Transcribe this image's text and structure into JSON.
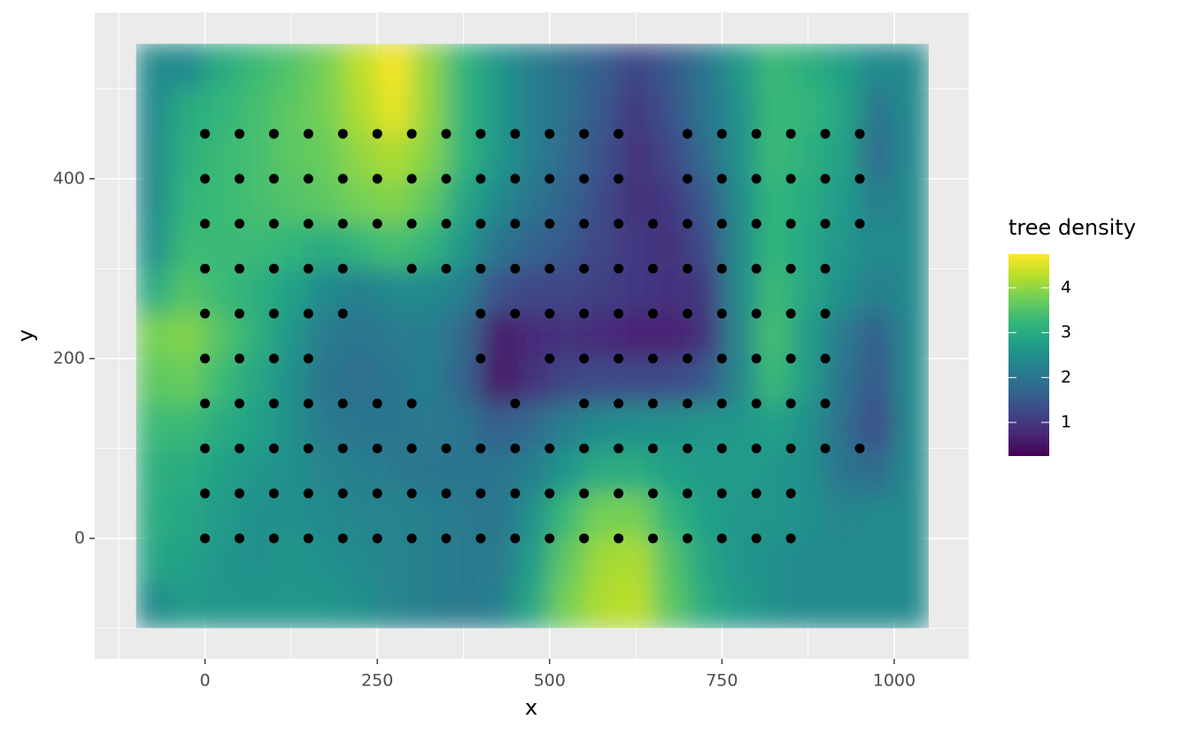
{
  "chart_data": {
    "type": "heatmap",
    "x_label": "x",
    "y_label": "y",
    "legend_title": "tree density",
    "xlim": [
      -160,
      1108
    ],
    "ylim": [
      -134,
      585
    ],
    "xticks": [
      0,
      250,
      500,
      750,
      1000
    ],
    "yticks": [
      0,
      200,
      400
    ],
    "xminor": [
      -125,
      125,
      375,
      625,
      875
    ],
    "yminor": [
      -100,
      100,
      300,
      500
    ],
    "grid": true,
    "zlim": [
      0.25,
      4.75
    ],
    "zticks": [
      1,
      2,
      3,
      4
    ],
    "colorscale": [
      "#440154",
      "#482878",
      "#3e4989",
      "#31688e",
      "#26828e",
      "#1f9e89",
      "#35b779",
      "#6ece58",
      "#b5de2b",
      "#fde725"
    ],
    "x": [
      -75,
      -25,
      25,
      75,
      125,
      175,
      225,
      275,
      325,
      375,
      425,
      475,
      525,
      575,
      625,
      675,
      725,
      775,
      825,
      875,
      925,
      975,
      1025
    ],
    "y": [
      525,
      475,
      425,
      375,
      325,
      275,
      225,
      175,
      125,
      75,
      25,
      -25,
      -75
    ],
    "z": [
      [
        2.4,
        2.4,
        3.0,
        3.3,
        3.5,
        3.8,
        4.3,
        4.7,
        4.0,
        3.2,
        2.6,
        2.2,
        1.9,
        1.6,
        1.2,
        1.5,
        2.0,
        2.6,
        3.3,
        3.1,
        2.8,
        2.4,
        2.4
      ],
      [
        2.4,
        3.0,
        3.2,
        3.4,
        3.6,
        3.8,
        4.2,
        4.6,
        4.0,
        3.2,
        2.6,
        2.2,
        1.9,
        1.5,
        1.0,
        1.4,
        2.0,
        2.5,
        3.3,
        3.2,
        2.9,
        2.0,
        2.4
      ],
      [
        2.4,
        3.1,
        3.3,
        3.4,
        3.6,
        3.7,
        4.0,
        4.2,
        3.9,
        3.2,
        2.6,
        2.2,
        1.8,
        1.4,
        0.9,
        1.2,
        1.8,
        2.5,
        3.3,
        3.1,
        2.8,
        1.8,
        2.4
      ],
      [
        2.4,
        3.2,
        3.3,
        3.4,
        3.5,
        3.6,
        3.8,
        3.9,
        3.6,
        2.9,
        2.4,
        2.0,
        1.7,
        1.3,
        0.9,
        1.0,
        1.5,
        2.4,
        3.2,
        3.0,
        2.7,
        2.2,
        2.4
      ],
      [
        2.5,
        3.3,
        3.3,
        3.3,
        3.2,
        3.0,
        3.2,
        3.4,
        3.2,
        2.6,
        2.0,
        1.7,
        1.5,
        1.2,
        1.0,
        0.9,
        1.3,
        2.4,
        3.2,
        2.9,
        2.6,
        2.4,
        2.4
      ],
      [
        3.0,
        3.5,
        3.3,
        3.1,
        2.8,
        2.4,
        2.2,
        2.4,
        2.4,
        2.2,
        1.4,
        1.2,
        1.2,
        1.1,
        1.0,
        0.9,
        1.0,
        2.4,
        3.3,
        2.9,
        2.5,
        2.2,
        2.4
      ],
      [
        3.8,
        3.9,
        3.5,
        3.1,
        2.6,
        2.1,
        2.0,
        2.1,
        2.2,
        1.8,
        0.6,
        0.8,
        0.9,
        0.8,
        0.7,
        0.7,
        0.9,
        2.3,
        3.4,
        2.7,
        2.1,
        1.6,
        2.4
      ],
      [
        3.6,
        3.7,
        3.3,
        2.9,
        2.5,
        2.0,
        1.9,
        2.0,
        2.2,
        1.7,
        0.5,
        0.9,
        1.2,
        1.3,
        1.3,
        1.3,
        1.5,
        2.3,
        3.3,
        2.7,
        2.0,
        1.5,
        2.4
      ],
      [
        3.3,
        3.3,
        3.0,
        2.8,
        2.5,
        2.1,
        2.0,
        2.0,
        2.1,
        2.0,
        1.6,
        1.8,
        2.2,
        2.4,
        2.5,
        2.5,
        2.6,
        2.6,
        2.8,
        2.5,
        1.9,
        1.3,
        2.4
      ],
      [
        3.1,
        3.0,
        2.8,
        2.6,
        2.5,
        2.3,
        2.2,
        2.1,
        2.0,
        2.0,
        2.0,
        2.2,
        2.6,
        3.0,
        3.0,
        2.8,
        2.7,
        2.7,
        2.6,
        2.5,
        2.0,
        1.8,
        2.4
      ],
      [
        3.0,
        2.9,
        2.7,
        2.5,
        2.5,
        2.4,
        2.3,
        2.3,
        2.2,
        2.1,
        2.0,
        2.5,
        3.3,
        3.8,
        3.8,
        3.2,
        2.8,
        2.6,
        2.6,
        2.5,
        2.3,
        2.4,
        2.4
      ],
      [
        2.9,
        2.8,
        2.6,
        2.5,
        2.6,
        2.5,
        2.4,
        2.3,
        2.2,
        2.1,
        2.1,
        2.7,
        3.6,
        4.1,
        4.2,
        3.5,
        2.9,
        2.6,
        2.5,
        2.4,
        2.4,
        2.4,
        2.4
      ],
      [
        2.4,
        2.7,
        2.6,
        2.6,
        2.6,
        2.6,
        2.5,
        2.3,
        2.2,
        2.1,
        2.2,
        2.9,
        3.8,
        4.2,
        4.3,
        3.6,
        3.0,
        2.7,
        2.5,
        2.4,
        2.4,
        2.4,
        2.4
      ]
    ],
    "points": {
      "type": "scatter",
      "color": "#000000",
      "x": [
        0,
        50,
        100,
        150,
        200,
        250,
        300,
        350,
        400,
        450,
        500,
        550,
        600,
        700,
        750,
        800,
        850,
        900,
        950,
        0,
        50,
        100,
        150,
        200,
        250,
        300,
        350,
        400,
        450,
        500,
        550,
        600,
        700,
        750,
        800,
        850,
        900,
        950,
        0,
        50,
        100,
        150,
        200,
        250,
        300,
        350,
        400,
        450,
        500,
        550,
        600,
        650,
        700,
        750,
        800,
        850,
        900,
        950,
        0,
        50,
        100,
        150,
        200,
        300,
        350,
        400,
        450,
        500,
        550,
        600,
        650,
        700,
        750,
        800,
        850,
        900,
        0,
        50,
        100,
        150,
        200,
        400,
        450,
        500,
        550,
        600,
        650,
        700,
        750,
        800,
        850,
        900,
        0,
        50,
        100,
        150,
        400,
        500,
        550,
        600,
        650,
        700,
        750,
        800,
        850,
        900,
        0,
        50,
        100,
        150,
        200,
        250,
        300,
        450,
        550,
        600,
        650,
        700,
        750,
        800,
        850,
        900,
        0,
        50,
        100,
        150,
        200,
        250,
        300,
        350,
        400,
        450,
        500,
        550,
        600,
        650,
        700,
        750,
        800,
        850,
        900,
        950,
        0,
        50,
        100,
        150,
        200,
        250,
        300,
        350,
        400,
        450,
        500,
        550,
        600,
        650,
        700,
        750,
        800,
        850,
        0,
        50,
        100,
        150,
        200,
        250,
        300,
        350,
        400,
        450,
        500,
        550,
        600,
        650,
        700,
        750,
        800,
        850
      ],
      "y": [
        450,
        450,
        450,
        450,
        450,
        450,
        450,
        450,
        450,
        450,
        450,
        450,
        450,
        450,
        450,
        450,
        450,
        450,
        450,
        400,
        400,
        400,
        400,
        400,
        400,
        400,
        400,
        400,
        400,
        400,
        400,
        400,
        400,
        400,
        400,
        400,
        400,
        400,
        350,
        350,
        350,
        350,
        350,
        350,
        350,
        350,
        350,
        350,
        350,
        350,
        350,
        350,
        350,
        350,
        350,
        350,
        350,
        350,
        300,
        300,
        300,
        300,
        300,
        300,
        300,
        300,
        300,
        300,
        300,
        300,
        300,
        300,
        300,
        300,
        300,
        300,
        250,
        250,
        250,
        250,
        250,
        250,
        250,
        250,
        250,
        250,
        250,
        250,
        250,
        250,
        250,
        250,
        200,
        200,
        200,
        200,
        200,
        200,
        200,
        200,
        200,
        200,
        200,
        200,
        200,
        200,
        150,
        150,
        150,
        150,
        150,
        150,
        150,
        150,
        150,
        150,
        150,
        150,
        150,
        150,
        150,
        150,
        100,
        100,
        100,
        100,
        100,
        100,
        100,
        100,
        100,
        100,
        100,
        100,
        100,
        100,
        100,
        100,
        100,
        100,
        100,
        100,
        50,
        50,
        50,
        50,
        50,
        50,
        50,
        50,
        50,
        50,
        50,
        50,
        50,
        50,
        50,
        50,
        50,
        50,
        0,
        0,
        0,
        0,
        0,
        0,
        0,
        0,
        0,
        0,
        0,
        0,
        0,
        0,
        0,
        0,
        0,
        0
      ]
    }
  }
}
